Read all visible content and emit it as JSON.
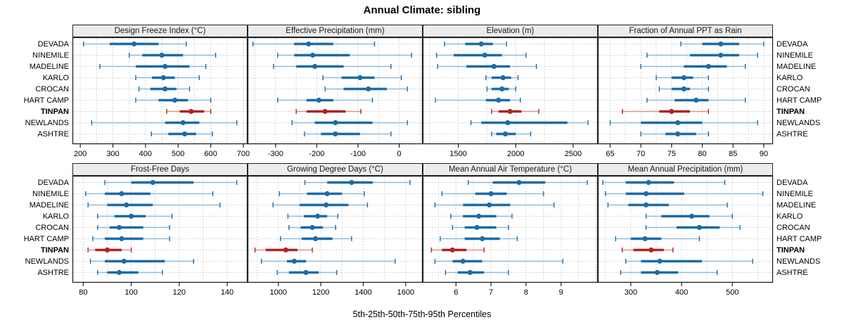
{
  "chart_data": {
    "type": "scatter",
    "variant": "trellis percentile dot plot (whisker 5-95, bar 25-75, dot median)",
    "title": "Annual Climate: sibling",
    "xlabel": "5th-25th-50th-75th-95th Percentiles",
    "percentiles": [
      "5th",
      "25th",
      "50th",
      "75th",
      "95th"
    ],
    "sites": [
      "DEVADA",
      "NINEMILE",
      "MADELINE",
      "KARLO",
      "CROCAN",
      "HART CAMP",
      "TINPAN",
      "NEWLANDS",
      "ASHTRE"
    ],
    "highlight_site": "TINPAN",
    "legend_position": "none",
    "grid": "dotted",
    "colors": {
      "normal_dark": "#1b6ca8",
      "normal_light": "#8fbcdb",
      "highlight_dark": "#b02323",
      "highlight_light": "#d8968f",
      "strip_bg": "#ececec",
      "gridline": "#c8c8c8",
      "border": "#222222"
    },
    "panels": [
      {
        "label": "Design Freeze Index (°C)",
        "row": 0,
        "col": 0,
        "xlim": [
          176,
          713
        ],
        "ticks": [
          200,
          300,
          400,
          500,
          600,
          700
        ],
        "grid_step": 50,
        "values": [
          [
            210,
            290,
            365,
            440,
            525
          ],
          [
            350,
            390,
            450,
            515,
            615
          ],
          [
            260,
            370,
            460,
            535,
            585
          ],
          [
            370,
            420,
            455,
            490,
            565
          ],
          [
            380,
            415,
            460,
            495,
            535
          ],
          [
            370,
            440,
            490,
            530,
            600
          ],
          [
            465,
            505,
            540,
            580,
            600
          ],
          [
            235,
            460,
            515,
            565,
            680
          ],
          [
            418,
            470,
            520,
            555,
            605
          ]
        ]
      },
      {
        "label": "Effective Precipitation (mm)",
        "row": 0,
        "col": 1,
        "xlim": [
          -368,
          57
        ],
        "ticks": [
          -300,
          -200,
          -100,
          0
        ],
        "grid_step": 50,
        "values": [
          [
            -355,
            -255,
            -220,
            -160,
            -60
          ],
          [
            -295,
            -255,
            -210,
            -120,
            30
          ],
          [
            -305,
            -250,
            -205,
            -135,
            -20
          ],
          [
            -185,
            -140,
            -95,
            -60,
            5
          ],
          [
            -180,
            -135,
            -75,
            -30,
            20
          ],
          [
            -295,
            -225,
            -195,
            -160,
            -65
          ],
          [
            -250,
            -225,
            -180,
            -130,
            -93
          ],
          [
            -260,
            -205,
            -155,
            -65,
            20
          ],
          [
            -230,
            -190,
            -155,
            -95,
            -20
          ]
        ]
      },
      {
        "label": "Elevation (m)",
        "row": 0,
        "col": 2,
        "xlim": [
          1190,
          2715
        ],
        "ticks": [
          1500,
          2000,
          2500
        ],
        "grid_step": 250,
        "values": [
          [
            1380,
            1560,
            1700,
            1800,
            1920
          ],
          [
            1310,
            1460,
            1730,
            1880,
            2090
          ],
          [
            1320,
            1570,
            1810,
            1950,
            2180
          ],
          [
            1740,
            1790,
            1890,
            1960,
            2020
          ],
          [
            1750,
            1790,
            1880,
            1940,
            2000
          ],
          [
            1300,
            1740,
            1850,
            1950,
            2040
          ],
          [
            1790,
            1850,
            1950,
            2050,
            2200
          ],
          [
            1610,
            1700,
            1930,
            2450,
            2630
          ],
          [
            1790,
            1830,
            1910,
            2000,
            2130
          ]
        ]
      },
      {
        "label": "Fraction of Annual PPT as Rain",
        "row": 0,
        "col": 3,
        "xlim": [
          63,
          91.5
        ],
        "ticks": [
          65,
          70,
          75,
          80,
          85,
          90
        ],
        "grid_step": 2.5,
        "values": [
          [
            76.5,
            80,
            83,
            86,
            90
          ],
          [
            71,
            78,
            83,
            86,
            89
          ],
          [
            70,
            77,
            81,
            84,
            87
          ],
          [
            72.5,
            75,
            77,
            78.5,
            81
          ],
          [
            73,
            75,
            77,
            78,
            81
          ],
          [
            71,
            75.5,
            79,
            81,
            87
          ],
          [
            67,
            73,
            75,
            78,
            81
          ],
          [
            65,
            70,
            76,
            80,
            89
          ],
          [
            70,
            74,
            76,
            79,
            81
          ]
        ]
      },
      {
        "label": "Frost-Free Days",
        "row": 1,
        "col": 0,
        "xlim": [
          75.5,
          148.5
        ],
        "ticks": [
          80,
          100,
          120,
          140
        ],
        "grid_step": 10,
        "values": [
          [
            89,
            100,
            109,
            126,
            144
          ],
          [
            81,
            89,
            96,
            108,
            134
          ],
          [
            82,
            90,
            98,
            109,
            137
          ],
          [
            86,
            93,
            100,
            106,
            117
          ],
          [
            86,
            91,
            95,
            105,
            116
          ],
          [
            84,
            89,
            96,
            105,
            116
          ],
          [
            82,
            85,
            90,
            96,
            100
          ],
          [
            83,
            89,
            97,
            114,
            126
          ],
          [
            86,
            90,
            95,
            103,
            113
          ]
        ]
      },
      {
        "label": "Growing Degree Days (°C)",
        "row": 1,
        "col": 1,
        "xlim": [
          855,
          1680
        ],
        "ticks": [
          1000,
          1200,
          1400,
          1600
        ],
        "grid_step": 100,
        "values": [
          [
            1125,
            1230,
            1345,
            1445,
            1620
          ],
          [
            1005,
            1135,
            1230,
            1300,
            1405
          ],
          [
            975,
            1100,
            1225,
            1330,
            1420
          ],
          [
            1045,
            1120,
            1185,
            1230,
            1280
          ],
          [
            1050,
            1105,
            1160,
            1210,
            1270
          ],
          [
            1010,
            1110,
            1175,
            1255,
            1345
          ],
          [
            890,
            940,
            1035,
            1090,
            1160
          ],
          [
            920,
            1040,
            1075,
            1130,
            1550
          ],
          [
            995,
            1050,
            1130,
            1190,
            1275
          ]
        ]
      },
      {
        "label": "Mean Annual Air Temperature (°C)",
        "row": 1,
        "col": 2,
        "xlim": [
          5.05,
          10.05
        ],
        "ticks": [
          6,
          7,
          8,
          9
        ],
        "grid_step": 0.5,
        "values": [
          [
            6.35,
            7.05,
            7.8,
            8.55,
            9.75
          ],
          [
            5.6,
            6.55,
            7.0,
            7.45,
            8.5
          ],
          [
            5.4,
            6.2,
            6.95,
            7.55,
            8.8
          ],
          [
            5.85,
            6.2,
            6.65,
            7.15,
            7.6
          ],
          [
            5.9,
            6.25,
            6.6,
            7.15,
            7.5
          ],
          [
            5.55,
            6.25,
            6.75,
            7.25,
            7.75
          ],
          [
            5.3,
            5.6,
            5.9,
            6.3,
            6.8
          ],
          [
            5.4,
            5.9,
            6.2,
            6.75,
            9.05
          ],
          [
            5.7,
            6.05,
            6.4,
            6.8,
            7.5
          ]
        ]
      },
      {
        "label": "Mean Annual Precipitation (mm)",
        "row": 1,
        "col": 3,
        "xlim": [
          235,
          580
        ],
        "ticks": [
          300,
          400,
          500
        ],
        "grid_step": 50,
        "values": [
          [
            245,
            290,
            335,
            385,
            485
          ],
          [
            250,
            290,
            330,
            405,
            560
          ],
          [
            255,
            295,
            330,
            375,
            490
          ],
          [
            330,
            360,
            420,
            455,
            500
          ],
          [
            330,
            390,
            435,
            475,
            515
          ],
          [
            270,
            300,
            328,
            360,
            435
          ],
          [
            283,
            305,
            340,
            365,
            383
          ],
          [
            290,
            320,
            357,
            440,
            540
          ],
          [
            280,
            320,
            352,
            393,
            470
          ]
        ]
      }
    ]
  }
}
